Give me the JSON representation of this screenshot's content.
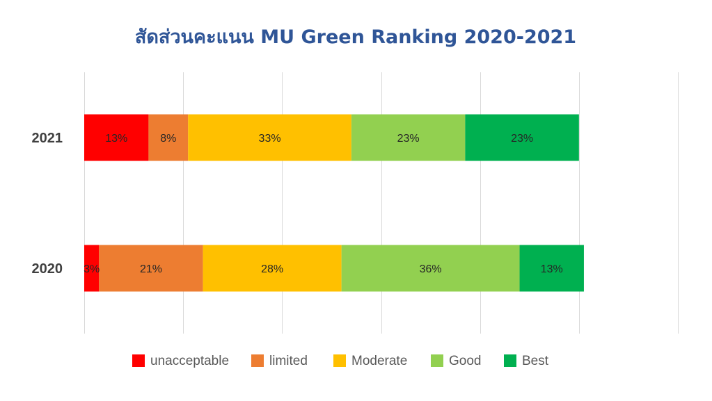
{
  "chart_data": {
    "type": "bar",
    "orientation": "horizontal",
    "stacked": true,
    "title": "สัดส่วนคะแนน MU Green Ranking 2020-2021",
    "categories": [
      "2021",
      "2020"
    ],
    "series": [
      {
        "name": "unacceptable",
        "color": "#ff0000",
        "values": [
          13,
          3
        ],
        "labels": [
          "13%",
          "3%"
        ]
      },
      {
        "name": "limited",
        "color": "#ed7d31",
        "values": [
          8,
          21
        ],
        "labels": [
          "8%",
          "21%"
        ]
      },
      {
        "name": "Moderate",
        "color": "#ffc000",
        "values": [
          33,
          28
        ],
        "labels": [
          "33%",
          "28%"
        ]
      },
      {
        "name": "Good",
        "color": "#92d050",
        "values": [
          23,
          36
        ],
        "labels": [
          "23%",
          "36%"
        ]
      },
      {
        "name": "Best",
        "color": "#00b050",
        "values": [
          23,
          13
        ],
        "labels": [
          "23%",
          "13%"
        ]
      }
    ],
    "xlim": [
      0,
      120
    ],
    "grid": true,
    "legend": "bottom"
  }
}
